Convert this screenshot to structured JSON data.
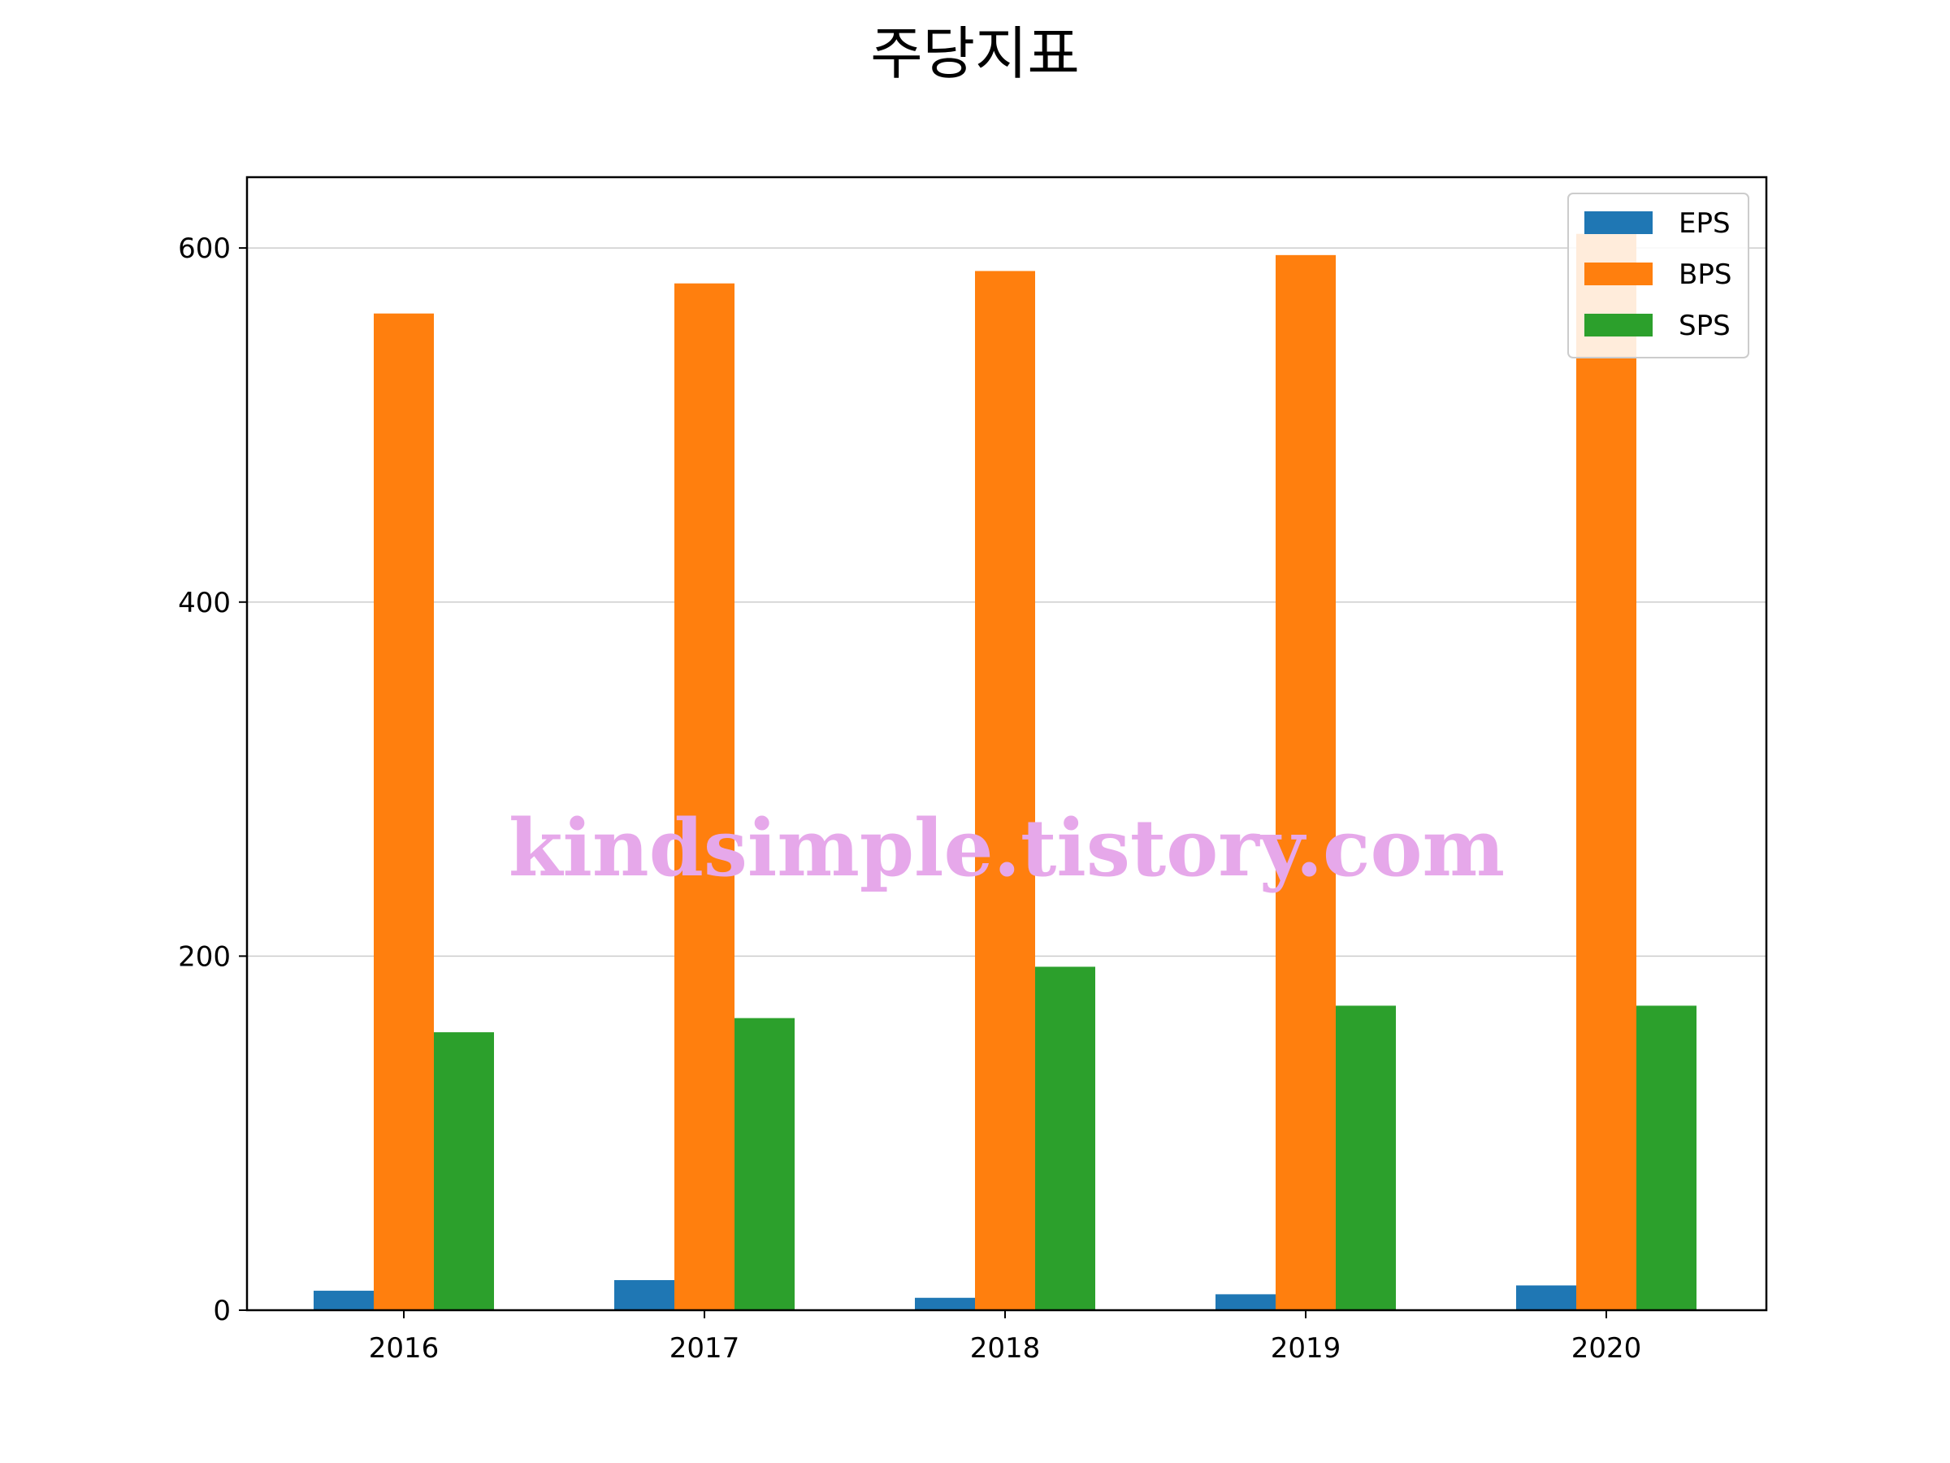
{
  "chart_data": {
    "type": "bar",
    "title": "주당지표",
    "xlabel": "",
    "ylabel": "",
    "categories": [
      "2016",
      "2017",
      "2018",
      "2019",
      "2020"
    ],
    "series": [
      {
        "name": "EPS",
        "color": "#1f77b4",
        "values": [
          11,
          17,
          7,
          9,
          14
        ]
      },
      {
        "name": "BPS",
        "color": "#ff7f0e",
        "values": [
          563,
          580,
          587,
          596,
          608
        ]
      },
      {
        "name": "SPS",
        "color": "#2ca02c",
        "values": [
          157,
          165,
          194,
          172,
          172
        ]
      }
    ],
    "ylim": [
      0,
      640
    ],
    "yticks": [
      "0",
      "200",
      "400",
      "600"
    ],
    "ytick_values": [
      0,
      200,
      400,
      600
    ],
    "grid": "horizontal",
    "legend_position": "top-right"
  },
  "watermark": "kindsimple.tistory.com"
}
